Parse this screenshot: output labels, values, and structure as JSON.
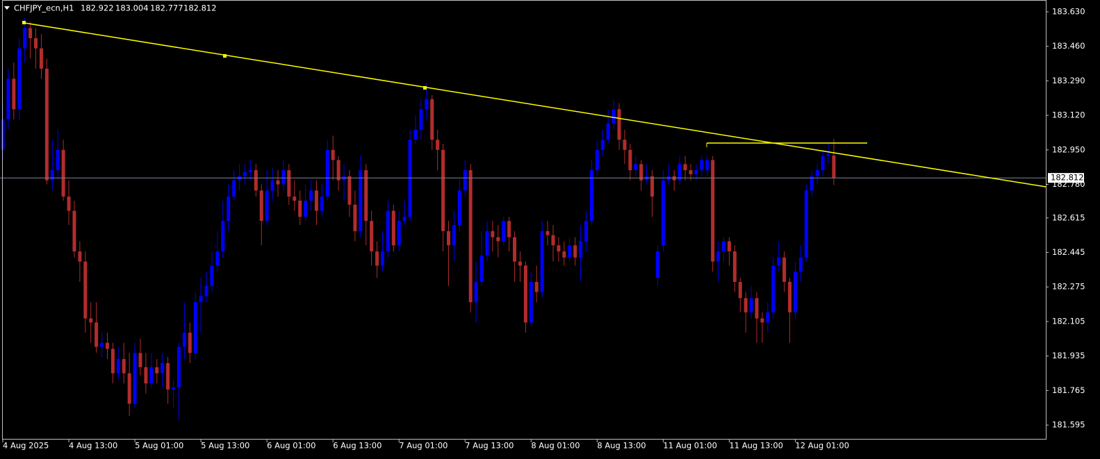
{
  "chart_data": {
    "type": "candlestick",
    "symbol": "CHFJPY_ecn,H1",
    "up_color": "#0000ff",
    "down_color": "#b22c2c",
    "price_line_color": "#778899",
    "grid": false,
    "categories": [
      "4 Aug 2025",
      null,
      null,
      null,
      null,
      null,
      null,
      null,
      null,
      null,
      null,
      null,
      "4 Aug 13:00",
      null,
      null,
      null,
      null,
      null,
      null,
      null,
      null,
      null,
      null,
      null,
      "5 Aug 01:00",
      null,
      null,
      null,
      null,
      null,
      null,
      null,
      null,
      null,
      null,
      null,
      "5 Aug 13:00",
      null,
      null,
      null,
      null,
      null,
      null,
      null,
      null,
      null,
      null,
      null,
      "6 Aug 01:00",
      null,
      null,
      null,
      null,
      null,
      null,
      null,
      null,
      null,
      null,
      null,
      "6 Aug 13:00",
      null,
      null,
      null,
      null,
      null,
      null,
      null,
      null,
      null,
      null,
      null,
      "7 Aug 01:00",
      null,
      null,
      null,
      null,
      null,
      null,
      null,
      null,
      null,
      null,
      null,
      "7 Aug 13:00",
      null,
      null,
      null,
      null,
      null,
      null,
      null,
      null,
      null,
      null,
      null,
      "8 Aug 01:00",
      null,
      null,
      null,
      null,
      null,
      null,
      null,
      null,
      null,
      null,
      null,
      "8 Aug 13:00",
      null,
      null,
      null,
      null,
      null,
      null,
      null,
      null,
      null,
      null,
      null,
      "11 Aug 01:00",
      null,
      null,
      null,
      null,
      null,
      null,
      null,
      null,
      null,
      null,
      null,
      "11 Aug 13:00",
      null,
      null,
      null,
      null,
      null,
      null,
      null,
      null,
      null,
      null,
      null,
      "12 Aug 01:00",
      null,
      null,
      null,
      null,
      null,
      null,
      null
    ],
    "open": [
      182.95,
      183.1,
      183.3,
      183.15,
      183.45,
      183.55,
      183.5,
      183.45,
      183.35,
      182.8,
      182.85,
      182.95,
      182.72,
      182.65,
      182.45,
      182.4,
      182.12,
      182.1,
      181.98,
      182.0,
      181.97,
      181.85,
      181.92,
      181.85,
      181.7,
      181.95,
      181.88,
      181.8,
      181.88,
      181.85,
      181.9,
      181.77,
      181.78,
      181.98,
      182.05,
      181.95,
      182.2,
      182.23,
      182.28,
      182.38,
      182.45,
      182.6,
      182.72,
      182.8,
      182.82,
      182.84,
      182.85,
      182.75,
      182.6,
      182.75,
      182.8,
      182.78,
      182.85,
      182.72,
      182.7,
      182.62,
      182.7,
      182.75,
      182.65,
      182.72,
      182.95,
      182.9,
      182.8,
      182.82,
      182.68,
      182.55,
      182.85,
      182.6,
      182.45,
      182.38,
      182.45,
      182.65,
      182.48,
      182.6,
      182.62,
      183.0,
      183.05,
      183.15,
      183.2,
      183.0,
      182.95,
      182.55,
      182.48,
      182.58,
      182.75,
      182.85,
      182.2,
      182.3,
      182.43,
      182.55,
      182.52,
      182.5,
      182.6,
      182.52,
      182.4,
      182.38,
      182.1,
      182.3,
      182.25,
      182.55,
      182.53,
      182.48,
      182.45,
      182.42,
      182.48,
      182.42,
      182.5,
      182.6,
      182.85,
      182.95,
      183.0,
      183.08,
      183.15,
      183.0,
      182.95,
      182.85,
      182.88,
      182.8,
      182.82,
      182.32,
      182.48,
      182.8,
      182.82,
      182.8,
      182.88,
      182.85,
      182.83,
      182.85,
      182.85,
      182.9,
      182.4,
      182.45,
      182.5,
      182.45,
      182.3,
      182.22,
      182.15,
      182.22,
      182.12,
      182.1,
      182.15,
      182.38,
      182.42,
      182.3,
      182.15,
      182.35,
      182.42,
      182.75,
      182.82,
      182.85,
      182.92,
      182.922
    ],
    "high": [
      183.18,
      183.35,
      183.38,
      183.5,
      183.6,
      183.58,
      183.55,
      183.52,
      183.4,
      183.0,
      183.05,
      183.0,
      182.8,
      182.7,
      182.5,
      182.45,
      182.2,
      182.2,
      182.05,
      182.05,
      182.0,
      181.98,
      182.0,
      181.95,
      182.0,
      182.02,
      181.95,
      181.95,
      181.92,
      181.95,
      181.93,
      181.82,
      182.0,
      182.2,
      182.1,
      182.25,
      182.32,
      182.35,
      182.45,
      182.55,
      182.7,
      182.78,
      182.85,
      182.88,
      182.88,
      182.9,
      182.88,
      182.78,
      182.85,
      182.86,
      182.85,
      182.9,
      182.88,
      182.8,
      182.75,
      182.78,
      182.8,
      182.8,
      182.78,
      183.0,
      183.02,
      182.92,
      182.88,
      182.85,
      182.75,
      182.92,
      182.88,
      182.65,
      182.5,
      182.55,
      182.7,
      182.68,
      182.65,
      182.7,
      183.05,
      183.12,
      183.2,
      183.28,
      183.22,
      183.05,
      182.98,
      182.6,
      182.65,
      182.8,
      182.9,
      182.88,
      182.4,
      182.55,
      182.6,
      182.6,
      182.58,
      182.62,
      182.62,
      182.55,
      182.45,
      182.4,
      182.35,
      182.38,
      182.6,
      182.6,
      182.58,
      182.52,
      182.5,
      182.52,
      182.52,
      182.58,
      182.65,
      182.9,
      183.0,
      183.05,
      183.15,
      183.2,
      183.18,
      183.05,
      182.98,
      182.92,
      182.9,
      182.88,
      182.85,
      182.48,
      182.85,
      182.88,
      182.85,
      182.92,
      182.92,
      182.88,
      182.88,
      182.92,
      182.92,
      182.92,
      182.5,
      182.52,
      182.52,
      182.48,
      182.32,
      182.25,
      182.28,
      182.25,
      182.15,
      182.2,
      182.42,
      182.5,
      182.45,
      182.32,
      182.4,
      182.48,
      182.78,
      182.85,
      182.88,
      182.95,
      182.98,
      183.004
    ],
    "low": [
      182.9,
      183.05,
      183.1,
      183.1,
      183.38,
      183.4,
      183.35,
      183.3,
      182.78,
      182.75,
      182.8,
      182.7,
      182.58,
      182.42,
      182.3,
      182.05,
      182.0,
      181.95,
      181.93,
      181.92,
      181.8,
      181.82,
      181.8,
      181.64,
      181.68,
      181.84,
      181.75,
      181.78,
      181.8,
      181.78,
      181.7,
      181.68,
      181.62,
      181.92,
      181.9,
      181.92,
      182.05,
      182.2,
      182.25,
      182.35,
      182.42,
      182.55,
      182.7,
      182.75,
      182.78,
      182.8,
      182.72,
      182.48,
      182.58,
      182.7,
      182.72,
      182.75,
      182.68,
      182.65,
      182.58,
      182.6,
      182.65,
      182.58,
      182.62,
      182.7,
      182.8,
      182.75,
      182.7,
      182.62,
      182.5,
      182.52,
      182.48,
      182.38,
      182.32,
      182.35,
      182.42,
      182.45,
      182.45,
      182.58,
      182.6,
      182.98,
      183.0,
      183.1,
      182.95,
      182.85,
      182.45,
      182.28,
      182.4,
      182.55,
      182.72,
      182.15,
      182.1,
      182.28,
      182.4,
      182.45,
      182.42,
      182.48,
      182.45,
      182.3,
      182.3,
      182.05,
      182.08,
      182.2,
      182.22,
      182.48,
      182.4,
      182.4,
      182.38,
      182.4,
      182.38,
      182.3,
      182.45,
      182.58,
      182.82,
      182.92,
      182.98,
      183.05,
      182.95,
      182.88,
      182.8,
      182.82,
      182.75,
      182.78,
      182.62,
      182.28,
      182.45,
      182.78,
      182.75,
      182.78,
      182.8,
      182.8,
      182.8,
      182.82,
      182.82,
      182.35,
      182.3,
      182.4,
      182.38,
      182.25,
      182.15,
      182.05,
      182.12,
      182.0,
      182.0,
      182.05,
      182.12,
      182.35,
      182.25,
      182.0,
      182.12,
      182.3,
      182.4,
      182.72,
      182.78,
      182.82,
      182.88,
      182.777
    ],
    "close": [
      183.1,
      183.3,
      183.15,
      183.45,
      183.55,
      183.5,
      183.45,
      183.35,
      182.8,
      182.85,
      182.95,
      182.72,
      182.65,
      182.45,
      182.4,
      182.12,
      182.1,
      181.98,
      182.0,
      181.97,
      181.85,
      181.92,
      181.85,
      181.7,
      181.95,
      181.88,
      181.8,
      181.88,
      181.85,
      181.9,
      181.77,
      181.78,
      181.98,
      182.05,
      181.95,
      182.2,
      182.23,
      182.28,
      182.38,
      182.45,
      182.6,
      182.72,
      182.8,
      182.82,
      182.84,
      182.85,
      182.75,
      182.6,
      182.75,
      182.8,
      182.78,
      182.85,
      182.72,
      182.7,
      182.62,
      182.7,
      182.75,
      182.65,
      182.72,
      182.95,
      182.9,
      182.8,
      182.82,
      182.68,
      182.55,
      182.85,
      182.6,
      182.45,
      182.38,
      182.45,
      182.65,
      182.48,
      182.6,
      182.62,
      183.0,
      183.05,
      183.15,
      183.2,
      183.0,
      182.95,
      182.55,
      182.48,
      182.58,
      182.75,
      182.85,
      182.2,
      182.3,
      182.43,
      182.55,
      182.52,
      182.5,
      182.6,
      182.52,
      182.4,
      182.38,
      182.1,
      182.3,
      182.25,
      182.55,
      182.53,
      182.48,
      182.45,
      182.42,
      182.48,
      182.42,
      182.5,
      182.6,
      182.85,
      182.95,
      183.0,
      183.08,
      183.15,
      183.0,
      182.95,
      182.85,
      182.88,
      182.8,
      182.82,
      182.72,
      182.45,
      182.8,
      182.82,
      182.8,
      182.88,
      182.85,
      182.83,
      182.85,
      182.9,
      182.9,
      182.4,
      182.45,
      182.5,
      182.45,
      182.3,
      182.22,
      182.15,
      182.22,
      182.12,
      182.1,
      182.15,
      182.38,
      182.42,
      182.3,
      182.15,
      182.35,
      182.42,
      182.75,
      182.82,
      182.85,
      182.92,
      182.93,
      182.812
    ],
    "ylim": [
      181.527,
      183.688
    ],
    "yticks": [
      {
        "value": 183.63,
        "label": "183.630"
      },
      {
        "value": 183.46,
        "label": "183.460"
      },
      {
        "value": 183.29,
        "label": "183.290"
      },
      {
        "value": 183.12,
        "label": "183.120"
      },
      {
        "value": 182.95,
        "label": "182.950"
      },
      {
        "value": 182.78,
        "label": "182.780"
      },
      182.615,
      182.445,
      182.275,
      182.105,
      181.935,
      181.765,
      181.595
    ]
  }
}
